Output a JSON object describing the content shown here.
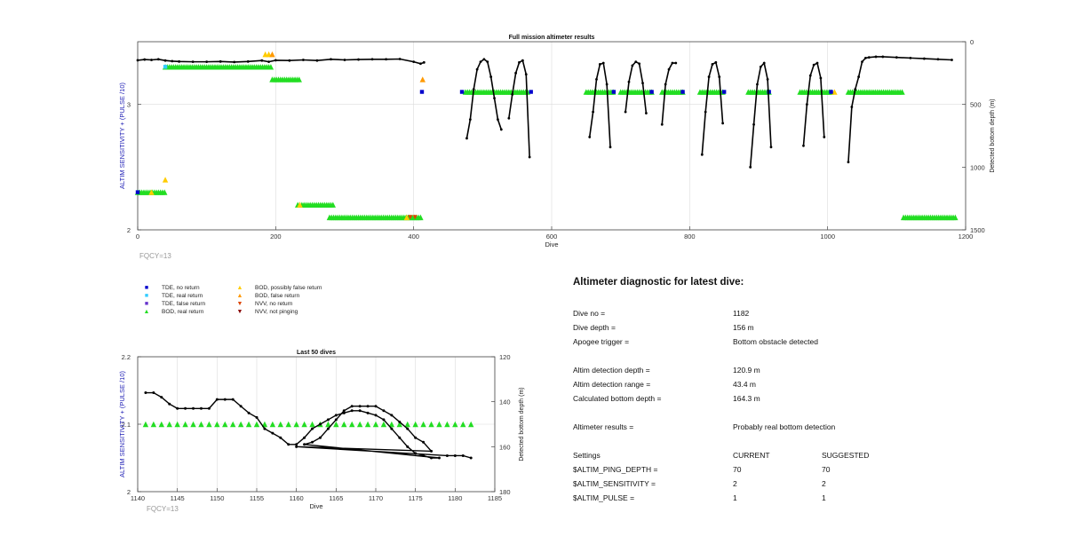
{
  "colors": {
    "axis": "#444444",
    "grid": "#dcdcdc",
    "left_axis_label": "#1c1cb4",
    "trace": "#000000",
    "tde_no_return": "#0000cc",
    "tde_real_return": "#33ccff",
    "tde_false_return": "#6633cc",
    "bod_real_return": "#22dd22",
    "bod_possibly_false": "#ffcc00",
    "bod_false_return": "#ff9900",
    "nvv_no_return": "#dd4400",
    "nvv_not_pinging": "#880000",
    "fqcy": "#999999"
  },
  "chart_data": [
    {
      "type": "scatter",
      "title": "Full mission altimeter results",
      "xlabel": "Dive",
      "ylabel_left": "ALTIM SENSITIVITY + (PULSE /10)",
      "ylabel_right": "Detected bottom depth (m)",
      "xlim": [
        0,
        1200
      ],
      "ylim_left": [
        2,
        3.5
      ],
      "ylim_right": [
        1500,
        0
      ],
      "xticks": [
        "0",
        "200",
        "400",
        "600",
        "800",
        "1000",
        "1200"
      ],
      "yticks_left": [
        "2",
        "3"
      ],
      "yticks_right": [
        "0",
        "500",
        "1000",
        "1500"
      ],
      "grid": true,
      "annotation": "FQCY=13",
      "series": [
        {
          "kind": "depth_trace",
          "segments": [
            {
              "x": [
                0,
                10,
                20,
                30,
                40,
                50,
                60,
                80,
                100,
                120,
                140,
                160,
                180,
                190,
                200,
                220,
                240,
                260,
                280,
                300,
                320,
                340,
                360,
                380,
                400,
                410,
                415
              ],
              "y": [
                148,
                142,
                145,
                140,
                150,
                155,
                158,
                160,
                160,
                158,
                162,
                158,
                150,
                160,
                148,
                150,
                145,
                150,
                140,
                145,
                142,
                140,
                140,
                138,
                160,
                175,
                165
              ]
            },
            {
              "x": [
                477,
                482,
                487,
                492,
                497,
                502,
                507,
                512,
                517,
                522,
                527
              ],
              "y": [
                770,
                620,
                380,
                220,
                160,
                140,
                160,
                280,
                450,
                620,
                700
              ]
            },
            {
              "x": [
                538,
                543,
                548,
                553,
                558,
                563,
                568
              ],
              "y": [
                610,
                420,
                250,
                165,
                150,
                260,
                920
              ]
            },
            {
              "x": [
                655,
                660,
                665,
                670,
                675,
                680,
                685
              ],
              "y": [
                760,
                560,
                300,
                180,
                170,
                340,
                840
              ]
            },
            {
              "x": [
                707,
                712,
                717,
                722,
                727,
                732,
                737
              ],
              "y": [
                560,
                320,
                190,
                160,
                175,
                330,
                570
              ]
            },
            {
              "x": [
                760,
                765,
                770,
                775,
                780
              ],
              "y": [
                660,
                340,
                220,
                170,
                170
              ]
            },
            {
              "x": [
                818,
                823,
                828,
                833,
                838,
                843,
                848
              ],
              "y": [
                900,
                560,
                280,
                180,
                165,
                280,
                650
              ]
            },
            {
              "x": [
                888,
                893,
                898,
                903,
                908,
                913,
                918
              ],
              "y": [
                1000,
                660,
                340,
                200,
                170,
                300,
                840
              ]
            },
            {
              "x": [
                965,
                970,
                975,
                980,
                985,
                990,
                995
              ],
              "y": [
                830,
                500,
                270,
                185,
                170,
                290,
                760
              ]
            },
            {
              "x": [
                1030,
                1035,
                1040,
                1045,
                1050,
                1055,
                1060,
                1070,
                1080,
                1100,
                1120,
                1140,
                1160,
                1180
              ],
              "y": [
                960,
                520,
                380,
                280,
                160,
                130,
                125,
                120,
                120,
                125,
                130,
                135,
                140,
                145
              ]
            }
          ]
        },
        {
          "kind": "bod_real_return",
          "segments": [
            [
              0,
              40,
              2.3
            ],
            [
              40,
              195,
              3.3
            ],
            [
              195,
              235,
              3.2
            ],
            [
              232,
              285,
              2.2
            ],
            [
              278,
              412,
              2.1
            ],
            [
              475,
              565,
              3.1
            ],
            [
              650,
              690,
              3.1
            ],
            [
              700,
              745,
              3.1
            ],
            [
              760,
              790,
              3.1
            ],
            [
              815,
              850,
              3.1
            ],
            [
              885,
              915,
              3.1
            ],
            [
              960,
              1005,
              3.1
            ],
            [
              1030,
              1110,
              3.1
            ],
            [
              1110,
              1185,
              2.1
            ]
          ]
        },
        {
          "kind": "bod_possibly_false",
          "points": [
            [
              20,
              2.3
            ],
            [
              40,
              2.4
            ],
            [
              185,
              3.4
            ],
            [
              190,
              3.4
            ],
            [
              235,
              2.2
            ],
            [
              390,
              2.1
            ],
            [
              1010,
              3.1
            ]
          ]
        },
        {
          "kind": "bod_false_return",
          "points": [
            [
              413,
              3.2
            ],
            [
              195,
              3.4
            ]
          ]
        },
        {
          "kind": "nvv_no_return",
          "points": [
            [
              395,
              2.1
            ],
            [
              402,
              2.1
            ]
          ]
        },
        {
          "kind": "tde_no_return",
          "points": [
            [
              0,
              2.3
            ],
            [
              412,
              3.1
            ],
            [
              470,
              3.1
            ],
            [
              570,
              3.1
            ],
            [
              690,
              3.1
            ],
            [
              745,
              3.1
            ],
            [
              790,
              3.1
            ],
            [
              850,
              3.1
            ],
            [
              915,
              3.1
            ],
            [
              1005,
              3.1
            ]
          ]
        },
        {
          "kind": "tde_real_return",
          "points": [
            [
              40,
              3.3
            ]
          ]
        }
      ]
    },
    {
      "type": "scatter",
      "title": "Last 50 dives",
      "xlabel": "Dive",
      "ylabel_left": "ALTIM SENSITIVITY + (PULSE /10)",
      "ylabel_right": "Detected bottom depth (m)",
      "xlim": [
        1140,
        1185
      ],
      "ylim_left": [
        2,
        2.2
      ],
      "ylim_right": [
        180,
        120
      ],
      "xticks": [
        "1140",
        "1145",
        "1150",
        "1155",
        "1160",
        "1165",
        "1170",
        "1175",
        "1180",
        "1185"
      ],
      "yticks_left": [
        "2",
        "2.1",
        "2.2"
      ],
      "yticks_right": [
        "120",
        "140",
        "160",
        "180"
      ],
      "grid": true,
      "annotation": "FQCY=13",
      "series": [
        {
          "kind": "depth_trace",
          "x": [
            1141,
            1142,
            1143,
            1144,
            1145,
            1146,
            1147,
            1148,
            1149,
            1150,
            1151,
            1152,
            1153,
            1154,
            1155,
            1156,
            1157,
            1158,
            1159,
            1160,
            1161,
            1162,
            1163,
            1164,
            1165,
            1166,
            1167,
            1168,
            1169,
            1170,
            1171,
            1172,
            1173,
            1174,
            1175,
            1176,
            1177,
            1178,
            1161,
            1162,
            1163,
            1164,
            1165,
            1166,
            1167,
            1168,
            1169,
            1170,
            1171,
            1172,
            1173,
            1174,
            1175,
            1176,
            1177,
            1160,
            1179,
            1180,
            1181,
            1182
          ],
          "y": [
            136,
            136,
            138,
            141,
            143,
            143,
            143,
            143,
            143,
            139,
            139,
            139,
            142,
            145,
            147,
            152,
            154,
            156,
            159,
            159,
            156,
            152,
            150,
            148,
            146,
            145,
            144,
            144,
            145,
            146,
            148,
            152,
            156,
            160,
            163,
            164,
            165,
            165,
            159,
            158,
            156,
            152,
            148,
            144,
            142,
            142,
            142,
            142,
            144,
            146,
            149,
            152,
            156,
            158,
            162,
            160,
            164,
            164,
            164,
            165
          ]
        },
        {
          "kind": "bod_real_return",
          "x": [
            1141,
            1142,
            1143,
            1144,
            1145,
            1146,
            1147,
            1148,
            1149,
            1150,
            1151,
            1152,
            1153,
            1154,
            1155,
            1156,
            1157,
            1158,
            1159,
            1160,
            1161,
            1162,
            1163,
            1164,
            1165,
            1166,
            1167,
            1168,
            1169,
            1170,
            1171,
            1172,
            1173,
            1174,
            1175,
            1176,
            1177,
            1178,
            1179,
            1180,
            1181,
            1182
          ],
          "value": 2.1
        }
      ]
    }
  ],
  "legend": [
    {
      "symbol": "square",
      "color_key": "tde_no_return",
      "label": "TDE, no return"
    },
    {
      "symbol": "square",
      "color_key": "tde_real_return",
      "label": "TDE, real return"
    },
    {
      "symbol": "square",
      "color_key": "tde_false_return",
      "label": "TDE, false return"
    },
    {
      "symbol": "triangle-up",
      "color_key": "bod_real_return",
      "label": "BOD, real return"
    },
    {
      "symbol": "triangle-up",
      "color_key": "bod_possibly_false",
      "label": "BOD, possibly false return"
    },
    {
      "symbol": "triangle-up",
      "color_key": "bod_false_return",
      "label": "BOD, false return"
    },
    {
      "symbol": "triangle-down",
      "color_key": "nvv_no_return",
      "label": "NVV, no return"
    },
    {
      "symbol": "triangle-down",
      "color_key": "nvv_not_pinging",
      "label": "NVV, not pinging"
    }
  ],
  "diagnostic": {
    "title": "Altimeter diagnostic for latest dive:",
    "rows": [
      {
        "k": "Dive no =",
        "v": "1182"
      },
      {
        "k": "Dive depth =",
        "v": "156 m"
      },
      {
        "k": "Apogee trigger =",
        "v": "Bottom obstacle detected"
      },
      {
        "k": "Altim detection depth =",
        "v": "120.9 m"
      },
      {
        "k": "Altim detection range =",
        "v": "43.4 m"
      },
      {
        "k": "Calculated bottom depth =",
        "v": "164.3 m"
      },
      {
        "k": "Altimeter results =",
        "v": "Probably real bottom detection"
      }
    ],
    "settings": [
      {
        "k": "Settings",
        "v": "CURRENT",
        "s": "SUGGESTED"
      },
      {
        "k": "$ALTIM_PING_DEPTH =",
        "v": "70",
        "s": "70"
      },
      {
        "k": "$ALTIM_SENSITIVITY =",
        "v": "2",
        "s": "2"
      },
      {
        "k": "$ALTIM_PULSE =",
        "v": "1",
        "s": "1"
      }
    ]
  }
}
